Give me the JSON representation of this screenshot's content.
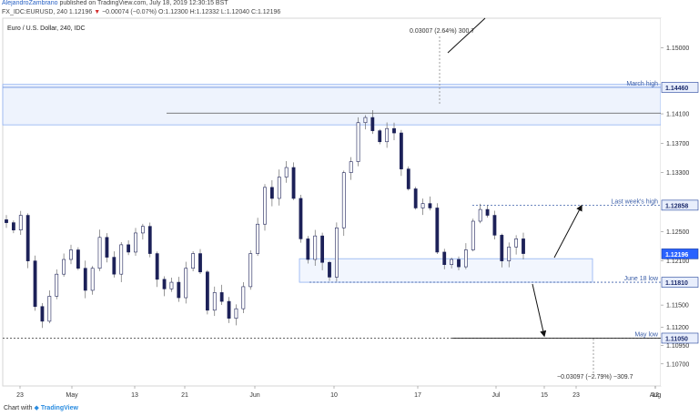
{
  "header": {
    "author": "AlejandroZambrano",
    "published": "published on TradingView.com, July 18, 2019 12:30:15 BST",
    "symbol": "FX_IDC:EURUSD, 240",
    "price": "1.12196",
    "change": "−0.00074 (−0.07%)",
    "ohlc": "O:1.12300 H:1.12332 L:1.12040 C:1.12196"
  },
  "legend_title": "Euro / U.S. Dollar, 240, IDC",
  "footer": {
    "prefix": "Chart with",
    "brand": "TradingView"
  },
  "colors": {
    "candle": "#1c2158",
    "accent": "#2962ff",
    "zone_fill": "#eef3fd",
    "zone_line": "#8fb0f2"
  },
  "chart_data": {
    "type": "candlestick",
    "title": "Euro / U.S. Dollar, 240, IDC",
    "ylim": [
      1.104,
      1.154
    ],
    "y_ticks": [
      "1.15000",
      "1.14100",
      "1.13700",
      "1.13300",
      "1.12500",
      "1.12100",
      "1.11500",
      "1.11200",
      "1.10950",
      "1.10700"
    ],
    "y_tick_values": [
      1.15,
      1.141,
      1.137,
      1.133,
      1.125,
      1.121,
      1.115,
      1.112,
      1.1095,
      1.107
    ],
    "x_ticks": [
      "23",
      "May",
      "13",
      "21",
      "Jun",
      "10",
      "17",
      "Jul",
      "15",
      "23",
      "Aug",
      "12"
    ],
    "closes": [
      1.1262,
      1.1252,
      1.1272,
      1.121,
      1.1148,
      1.1128,
      1.1162,
      1.1192,
      1.1212,
      1.1225,
      1.12,
      1.117,
      1.12,
      1.1242,
      1.1215,
      1.1192,
      1.1232,
      1.1222,
      1.1248,
      1.1257,
      1.122,
      1.1185,
      1.1172,
      1.1181,
      1.116,
      1.12,
      1.122,
      1.1195,
      1.1143,
      1.1167,
      1.1155,
      1.1132,
      1.1145,
      1.1175,
      1.122,
      1.126,
      1.131,
      1.1295,
      1.1324,
      1.1337,
      1.1295,
      1.124,
      1.1212,
      1.1244,
      1.1208,
      1.1188,
      1.1255,
      1.133,
      1.1345,
      1.1398,
      1.1405,
      1.1387,
      1.1372,
      1.139,
      1.1384,
      1.1335,
      1.1308,
      1.1282,
      1.1288,
      1.1282,
      1.1222,
      1.1205,
      1.1212,
      1.1202,
      1.1225,
      1.1264,
      1.128,
      1.1272,
      1.1245,
      1.121,
      1.1229,
      1.124,
      1.122
    ],
    "last_price": 1.12196,
    "levels": [
      {
        "name": "March high",
        "value": 1.1446
      },
      {
        "name": "Last week's high",
        "value": 1.12858
      },
      {
        "name": "June 18 low",
        "value": 1.1181
      },
      {
        "name": "May low",
        "value": 1.1105
      }
    ],
    "level_values": [
      "1.14460",
      "1.12858",
      "1.11810",
      "1.11050"
    ],
    "last_label": "1.12196",
    "resistance_zone": [
      1.1395,
      1.145
    ],
    "support_zone": [
      1.1181,
      1.1213
    ],
    "measures": [
      "0.03007 (2.64%) 300.7",
      "−0.03097 (−2.79%) −309.7"
    ]
  }
}
